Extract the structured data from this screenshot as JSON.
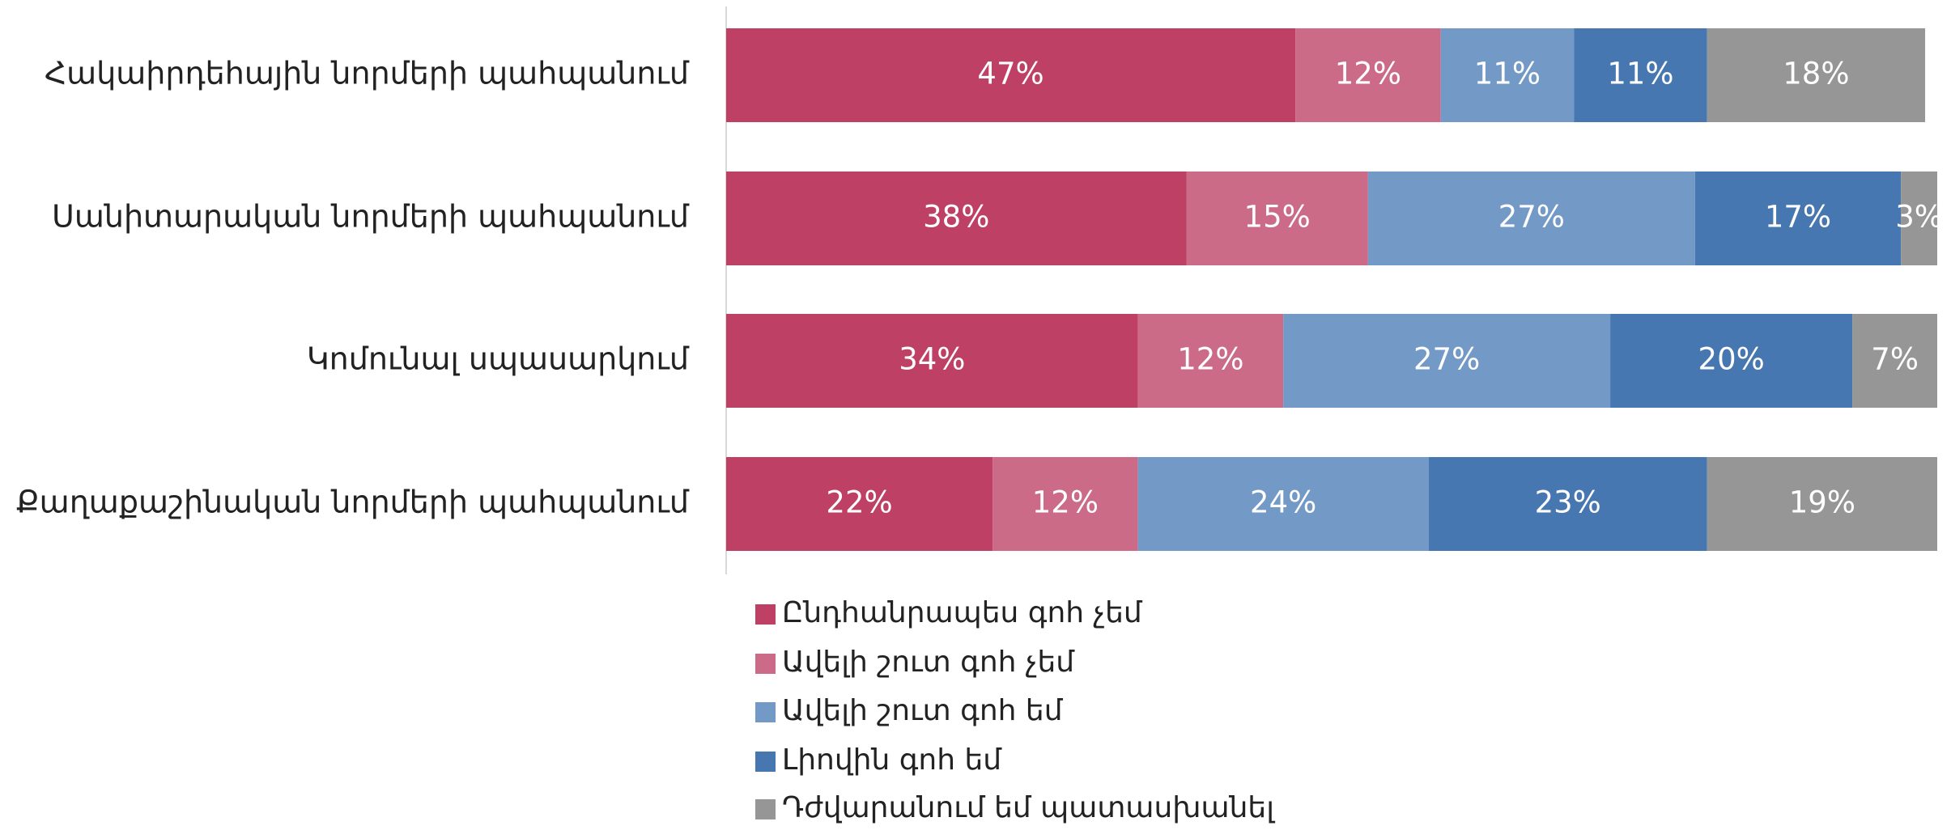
{
  "chart_data": {
    "type": "bar",
    "orientation": "horizontal",
    "stacked": true,
    "categories": [
      "Հակաիրդեհային նորմերի պահպանում",
      "Սանիտարական նորմերի պահպանում",
      "Կոմունալ սպասարկում",
      "Քաղաքաշինական նորմերի պահպանում"
    ],
    "xlim": [
      0,
      100
    ],
    "series": [
      {
        "name": "Ընդհանրապես գոհ չեմ",
        "color": "#be4064",
        "values": [
          47,
          38,
          34,
          22
        ],
        "value_labels": [
          "47%",
          "38%",
          "34%",
          "22%"
        ]
      },
      {
        "name": "Ավելի շուտ գոհ չեմ",
        "color": "#cb6b88",
        "values": [
          12,
          15,
          12,
          12
        ],
        "value_labels": [
          "12%",
          "15%",
          "12%",
          "12%"
        ]
      },
      {
        "name": "Ավելի շուտ գոհ եմ",
        "color": "#7399c6",
        "values": [
          11,
          27,
          27,
          24
        ],
        "value_labels": [
          "11%",
          "27%",
          "27%",
          "24%"
        ]
      },
      {
        "name": "Լիովին գոհ եմ",
        "color": "#4677b0",
        "values": [
          11,
          17,
          20,
          23
        ],
        "value_labels": [
          "11%",
          "17%",
          "20%",
          "23%"
        ]
      },
      {
        "name": "Դժվարանում եմ պատասխանել",
        "color": "#969696",
        "values": [
          18,
          3,
          7,
          19
        ],
        "value_labels": [
          "18%",
          "3%",
          "7%",
          "19%"
        ]
      }
    ]
  }
}
